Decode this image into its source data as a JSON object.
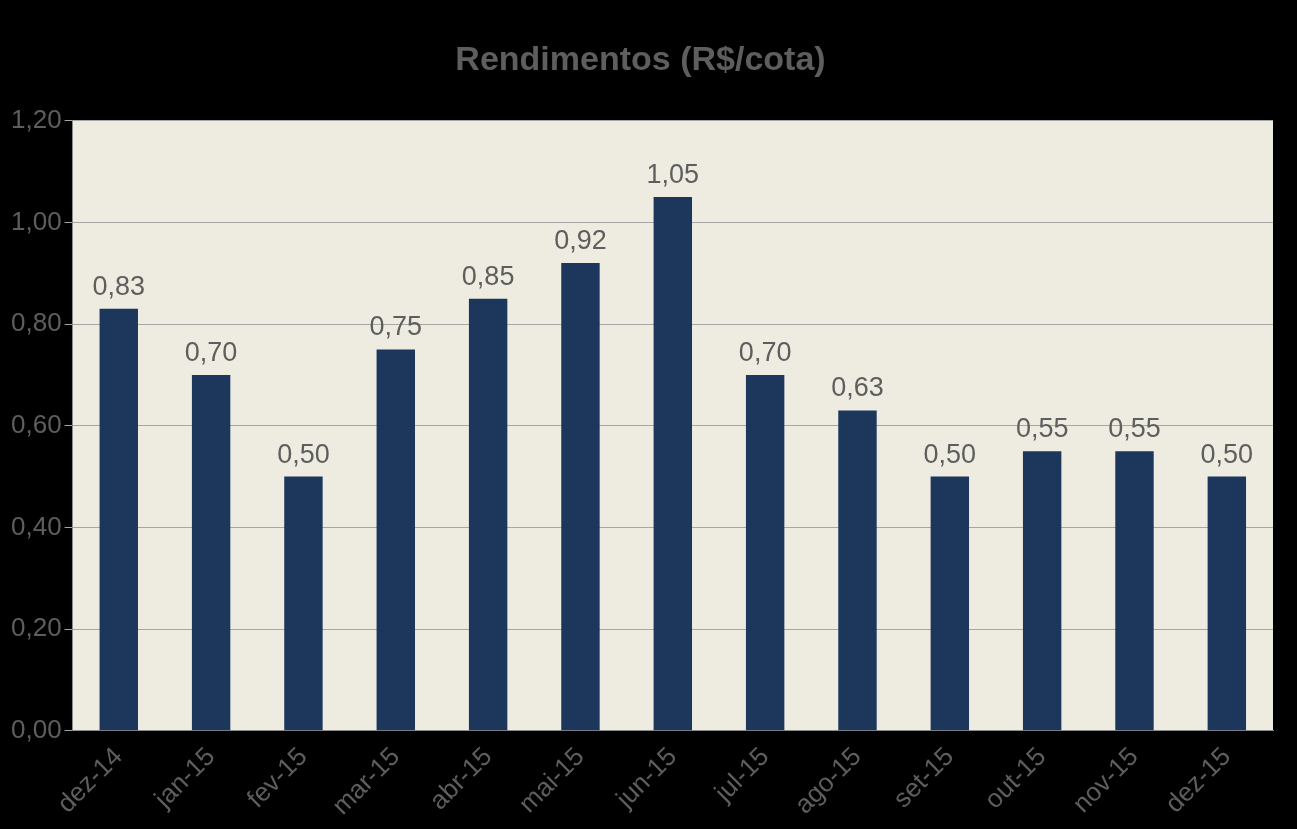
{
  "chart_data": {
    "type": "bar",
    "title": "Rendimentos (R$/cota)",
    "categories": [
      "dez-14",
      "jan-15",
      "fev-15",
      "mar-15",
      "abr-15",
      "mai-15",
      "jun-15",
      "jul-15",
      "ago-15",
      "set-15",
      "out-15",
      "nov-15",
      "dez-15"
    ],
    "values": [
      0.83,
      0.7,
      0.5,
      0.75,
      0.85,
      0.92,
      1.05,
      0.7,
      0.63,
      0.5,
      0.55,
      0.55,
      0.5
    ],
    "value_labels": [
      "0,83",
      "0,70",
      "0,50",
      "0,75",
      "0,85",
      "0,92",
      "1,05",
      "0,70",
      "0,63",
      "0,50",
      "0,55",
      "0,55",
      "0,50"
    ],
    "color": "#1c365c",
    "ylim": [
      0,
      1.2
    ],
    "yticks": [
      {
        "value": 0,
        "label": "0,00"
      },
      {
        "value": 0.2,
        "label": "0,20"
      },
      {
        "value": 0.4,
        "label": "0,40"
      },
      {
        "value": 0.6,
        "label": "0,60"
      },
      {
        "value": 0.8,
        "label": "0,80"
      },
      {
        "value": 1.0,
        "label": "1,00"
      },
      {
        "value": 1.2,
        "label": "1,20"
      }
    ],
    "grid": true,
    "data_labels": true
  }
}
